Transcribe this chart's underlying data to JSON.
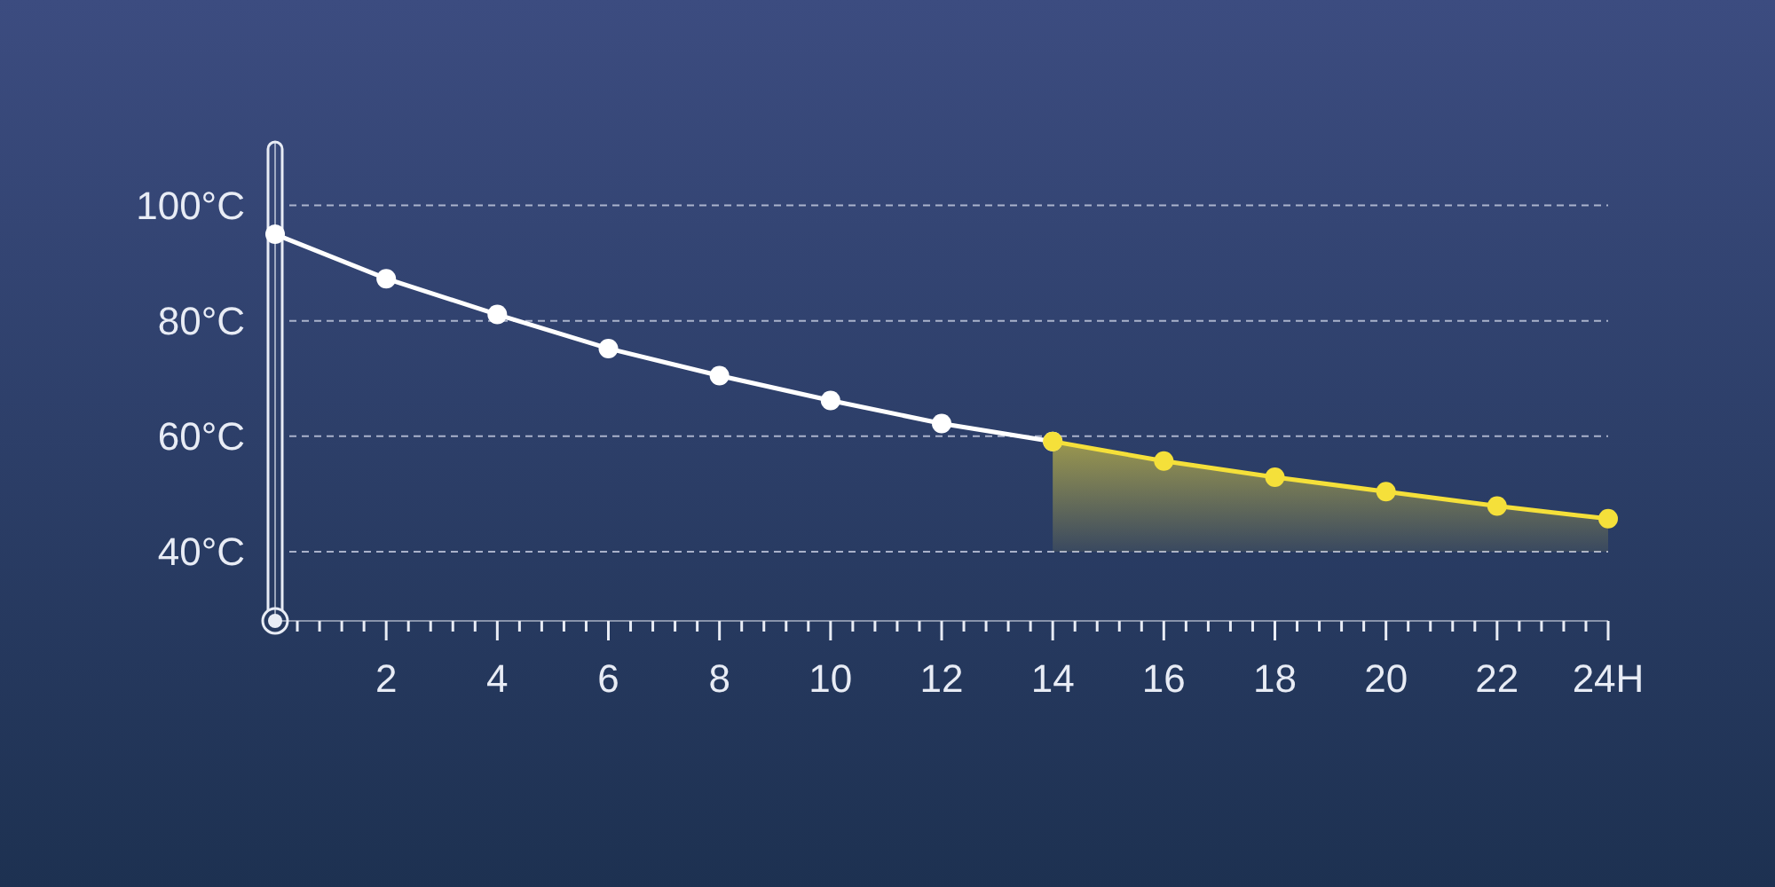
{
  "chart_data": {
    "type": "line",
    "xlim": [
      0,
      24
    ],
    "ylim": [
      28,
      111
    ],
    "xticks": [
      {
        "value": 0.4,
        "label": null
      },
      {
        "value": 0.8,
        "label": null
      },
      {
        "value": 1.2,
        "label": null
      },
      {
        "value": 1.6,
        "label": null
      },
      2,
      {
        "value": 2.4,
        "label": null
      },
      {
        "value": 2.8,
        "label": null
      },
      {
        "value": 3.2,
        "label": null
      },
      {
        "value": 3.6,
        "label": null
      },
      4,
      {
        "value": 4.4,
        "label": null
      },
      {
        "value": 4.8,
        "label": null
      },
      {
        "value": 5.2,
        "label": null
      },
      {
        "value": 5.6,
        "label": null
      },
      6,
      {
        "value": 6.4,
        "label": null
      },
      {
        "value": 6.8,
        "label": null
      },
      {
        "value": 7.2,
        "label": null
      },
      {
        "value": 7.6,
        "label": null
      },
      8,
      {
        "value": 8.4,
        "label": null
      },
      {
        "value": 8.8,
        "label": null
      },
      {
        "value": 9.2,
        "label": null
      },
      {
        "value": 9.6,
        "label": null
      },
      10,
      {
        "value": 10.4,
        "label": null
      },
      {
        "value": 10.8,
        "label": null
      },
      {
        "value": 11.2,
        "label": null
      },
      {
        "value": 11.6,
        "label": null
      },
      12,
      {
        "value": 12.4,
        "label": null
      },
      {
        "value": 12.8,
        "label": null
      },
      {
        "value": 13.2,
        "label": null
      },
      {
        "value": 13.6,
        "label": null
      },
      14,
      {
        "value": 14.4,
        "label": null
      },
      {
        "value": 14.8,
        "label": null
      },
      {
        "value": 15.2,
        "label": null
      },
      {
        "value": 15.6,
        "label": null
      },
      16,
      {
        "value": 16.4,
        "label": null
      },
      {
        "value": 16.8,
        "label": null
      },
      {
        "value": 17.2,
        "label": null
      },
      {
        "value": 17.6,
        "label": null
      },
      18,
      {
        "value": 18.4,
        "label": null
      },
      {
        "value": 18.8,
        "label": null
      },
      {
        "value": 19.2,
        "label": null
      },
      {
        "value": 19.6,
        "label": null
      },
      20,
      {
        "value": 20.4,
        "label": null
      },
      {
        "value": 20.8,
        "label": null
      },
      {
        "value": 21.2,
        "label": null
      },
      {
        "value": 21.6,
        "label": null
      },
      22,
      {
        "value": 22.4,
        "label": null
      },
      {
        "value": 22.8,
        "label": null
      },
      {
        "value": 23.2,
        "label": null
      },
      {
        "value": 23.6,
        "label": null
      },
      {
        "value": 24,
        "label": "24H"
      }
    ],
    "yticks": [
      {
        "value": 40,
        "label": "40°C"
      },
      {
        "value": 60,
        "label": "60°C"
      },
      {
        "value": 80,
        "label": "80°C"
      },
      {
        "value": 100,
        "label": "100°C"
      }
    ],
    "grid": "y",
    "marker": "circle",
    "line_style": "solid",
    "series": [
      {
        "color": "#ffffff",
        "x": [
          0,
          2,
          4,
          6,
          8,
          10,
          12,
          14
        ],
        "values": [
          95,
          87.3,
          81.1,
          75.2,
          70.5,
          66.2,
          62.2,
          59.1
        ]
      },
      {
        "type": "area",
        "color": "#f5e03a",
        "x": [
          14,
          16,
          18,
          20,
          22,
          24
        ],
        "values": [
          59.1,
          55.7,
          52.9,
          50.4,
          47.9,
          45.7
        ]
      }
    ]
  }
}
